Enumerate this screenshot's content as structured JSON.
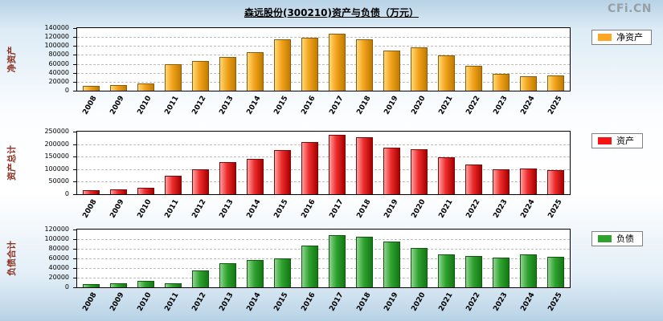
{
  "page": {
    "title": "森远股份(300210)资产与负债（万元）",
    "watermark": "CFi.CN"
  },
  "theme": {
    "axis_title_color": "#8a3324",
    "plot_background": "#ffffff",
    "grid_color": "#bdbdbd",
    "page_background_edge": "#b7d2e6",
    "page_background_center": "#ffffff"
  },
  "chart_data": [
    {
      "type": "bar",
      "title": "净资产",
      "ylabel": "净资产",
      "xlabel": "",
      "legend": "净资产",
      "legend_position": "right",
      "grid": true,
      "categories": [
        "2008",
        "2009",
        "2010",
        "2011",
        "2012",
        "2013",
        "2014",
        "2015",
        "2016",
        "2017",
        "2018",
        "2019",
        "2020",
        "2021",
        "2022",
        "2023",
        "2024",
        "2025"
      ],
      "values": [
        11000,
        12500,
        16000,
        60000,
        66000,
        76000,
        86000,
        115000,
        119000,
        127000,
        115000,
        90000,
        97000,
        79000,
        56000,
        38000,
        33000,
        34000
      ],
      "ylim": [
        0,
        140000
      ],
      "ytick_step": 20000,
      "colors": {
        "light": "#ffd873",
        "main": "#f2a21c",
        "dark": "#c07c00",
        "border": "#8a5c10",
        "legend": "#ffa525"
      }
    },
    {
      "type": "bar",
      "title": "资产总计",
      "ylabel": "资产总计",
      "xlabel": "",
      "legend": "资产",
      "legend_position": "right",
      "grid": true,
      "categories": [
        "2008",
        "2009",
        "2010",
        "2011",
        "2012",
        "2013",
        "2014",
        "2015",
        "2016",
        "2017",
        "2018",
        "2019",
        "2020",
        "2021",
        "2022",
        "2023",
        "2024",
        "2025"
      ],
      "values": [
        17000,
        20000,
        27000,
        73000,
        100000,
        127000,
        140000,
        175000,
        207000,
        238000,
        226000,
        186000,
        181000,
        146000,
        120000,
        100000,
        103000,
        97000
      ],
      "ylim": [
        0,
        250000
      ],
      "ytick_step": 50000,
      "colors": {
        "light": "#ff9e9e",
        "main": "#ee2c2c",
        "dark": "#a80000",
        "border": "#7a0a0a",
        "legend": "#f41414"
      }
    },
    {
      "type": "bar",
      "title": "负债合计",
      "ylabel": "负债合计",
      "xlabel": "",
      "legend": "负债",
      "legend_position": "right",
      "grid": true,
      "categories": [
        "2008",
        "2009",
        "2010",
        "2011",
        "2012",
        "2013",
        "2014",
        "2015",
        "2016",
        "2017",
        "2018",
        "2019",
        "2020",
        "2021",
        "2022",
        "2023",
        "2024",
        "2025"
      ],
      "values": [
        7000,
        7500,
        13000,
        8000,
        35000,
        50000,
        57000,
        60000,
        87000,
        108000,
        105000,
        95000,
        82000,
        68000,
        65000,
        62000,
        68000,
        63000
      ],
      "ylim": [
        0,
        120000
      ],
      "ytick_step": 20000,
      "colors": {
        "light": "#8fd48f",
        "main": "#2fa32f",
        "dark": "#157815",
        "border": "#0f5a0f",
        "legend": "#2ea12e"
      }
    }
  ]
}
